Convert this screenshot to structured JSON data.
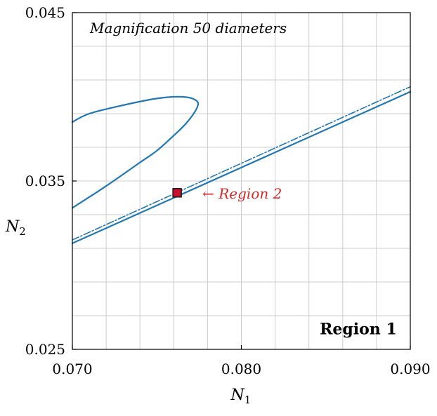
{
  "chart_data": {
    "type": "line",
    "title": "",
    "xlabel": "N",
    "xlabel_sub": "1",
    "ylabel": "N",
    "ylabel_sub": "2",
    "xlim": [
      0.07,
      0.09
    ],
    "ylim": [
      0.025,
      0.045
    ],
    "x_ticks": [
      {
        "value": 0.07,
        "label": "0.070"
      },
      {
        "value": 0.08,
        "label": "0.080"
      },
      {
        "value": 0.09,
        "label": "0.090"
      }
    ],
    "y_ticks": [
      {
        "value": 0.025,
        "label": "0.025"
      },
      {
        "value": 0.035,
        "label": "0.035"
      },
      {
        "value": 0.045,
        "label": "0.045"
      }
    ],
    "grid": true,
    "grid_x_minor": [
      0.072,
      0.074,
      0.076,
      0.078,
      0.082,
      0.084,
      0.086,
      0.088
    ],
    "grid_y_minor": [
      0.027,
      0.029,
      0.031,
      0.033,
      0.037,
      0.039,
      0.041,
      0.043
    ],
    "colors": {
      "curve": "#1f77b4",
      "marker": "#c8102e",
      "annotation": "#d62728"
    },
    "series": [
      {
        "style": "solid",
        "points": [
          [
            0.07,
            0.0334
          ],
          [
            0.072,
            0.0347
          ],
          [
            0.074,
            0.0361
          ],
          [
            0.075,
            0.0368
          ],
          [
            0.076,
            0.0377
          ],
          [
            0.0768,
            0.0385
          ],
          [
            0.0774,
            0.0394
          ],
          [
            0.0773,
            0.0398
          ],
          [
            0.0765,
            0.04
          ],
          [
            0.075,
            0.0399
          ],
          [
            0.073,
            0.0395
          ],
          [
            0.071,
            0.039
          ],
          [
            0.07,
            0.0385
          ]
        ]
      },
      {
        "style": "solid",
        "points": [
          [
            0.07,
            0.0313
          ],
          [
            0.09,
            0.0403
          ]
        ]
      },
      {
        "style": "dashdot",
        "points": [
          [
            0.07,
            0.0315
          ],
          [
            0.09,
            0.0406
          ]
        ]
      }
    ],
    "marker": {
      "x": 0.0762,
      "y": 0.0343,
      "label": "Region 2"
    },
    "annotations": [
      {
        "text": "Magnification 50 diameters",
        "x": 0.071,
        "y": 0.0438
      },
      {
        "text": "Region 1",
        "x": 0.0892,
        "y": 0.0259
      }
    ]
  }
}
